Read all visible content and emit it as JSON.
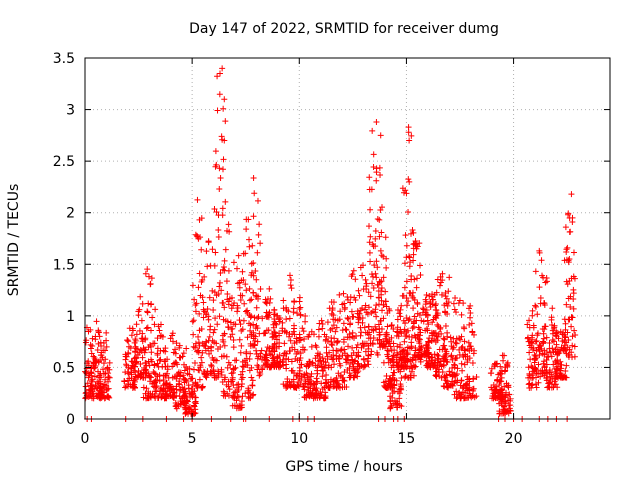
{
  "chart_data": {
    "type": "scatter",
    "title": "Day 147 of 2022, SRMTID for receiver dumg",
    "xlabel": "GPS time / hours",
    "ylabel": "SRMTID / TECUs",
    "xlim": [
      0,
      24.5
    ],
    "ylim": [
      0,
      3.5
    ],
    "x_ticks": [
      0,
      5,
      10,
      15,
      20
    ],
    "x_tick_labels": [
      "0",
      "5",
      "10",
      "15",
      "20"
    ],
    "y_ticks": [
      0,
      0.5,
      1,
      1.5,
      2,
      2.5,
      3,
      3.5
    ],
    "y_tick_labels": [
      "0",
      "0.5",
      "1",
      "1.5",
      "2",
      "2.5",
      "3",
      "3.5"
    ],
    "grid": true,
    "marker": "+",
    "marker_color": "#ff0000",
    "series": [
      {
        "name": "SRMTID",
        "density_profile": [
          [
            0.1,
            0.2,
            0.9
          ],
          [
            0.5,
            0.2,
            0.95
          ],
          [
            0.9,
            0.2,
            0.85
          ],
          [
            2.1,
            0.3,
            0.9
          ],
          [
            2.6,
            0.4,
            1.2
          ],
          [
            3.0,
            0.2,
            1.5
          ],
          [
            3.5,
            0.2,
            0.95
          ],
          [
            4.0,
            0.2,
            0.85
          ],
          [
            4.5,
            0.1,
            0.75
          ],
          [
            4.9,
            0.05,
            0.5
          ],
          [
            5.3,
            0.3,
            2.2
          ],
          [
            5.8,
            0.4,
            1.8
          ],
          [
            6.3,
            0.4,
            3.4
          ],
          [
            6.7,
            0.2,
            1.9
          ],
          [
            7.1,
            0.1,
            1.6
          ],
          [
            7.6,
            0.2,
            1.95
          ],
          [
            8.0,
            0.4,
            2.35
          ],
          [
            8.6,
            0.5,
            1.3
          ],
          [
            9.0,
            0.5,
            1.1
          ],
          [
            9.5,
            0.3,
            1.4
          ],
          [
            10.0,
            0.3,
            1.2
          ],
          [
            10.5,
            0.2,
            0.9
          ],
          [
            11.0,
            0.2,
            1.0
          ],
          [
            11.5,
            0.3,
            1.2
          ],
          [
            12.0,
            0.3,
            1.35
          ],
          [
            12.5,
            0.4,
            1.45
          ],
          [
            13.0,
            0.5,
            1.5
          ],
          [
            13.5,
            0.6,
            2.9
          ],
          [
            13.8,
            0.7,
            2.1
          ],
          [
            14.2,
            0.3,
            1.1
          ],
          [
            14.5,
            0.1,
            0.9
          ],
          [
            14.8,
            0.5,
            1.2
          ],
          [
            15.1,
            0.4,
            2.85
          ],
          [
            15.4,
            0.5,
            1.9
          ],
          [
            15.8,
            0.6,
            1.2
          ],
          [
            16.2,
            0.5,
            1.3
          ],
          [
            16.6,
            0.4,
            1.5
          ],
          [
            17.0,
            0.3,
            1.4
          ],
          [
            17.5,
            0.2,
            1.2
          ],
          [
            18.0,
            0.2,
            1.2
          ],
          [
            19.2,
            0.2,
            0.55
          ],
          [
            19.6,
            0.05,
            0.65
          ],
          [
            20.9,
            0.3,
            1.1
          ],
          [
            21.3,
            0.4,
            1.65
          ],
          [
            21.8,
            0.3,
            1.1
          ],
          [
            22.2,
            0.4,
            0.9
          ],
          [
            22.6,
            0.6,
            2.2
          ]
        ],
        "outliers": [
          [
            6.3,
            3.35
          ],
          [
            6.4,
            3.4
          ],
          [
            6.5,
            3.1
          ],
          [
            13.6,
            2.88
          ],
          [
            13.8,
            2.75
          ],
          [
            15.1,
            2.83
          ],
          [
            6.5,
            2.7
          ],
          [
            22.7,
            2.18
          ],
          [
            22.75,
            1.95
          ],
          [
            21.2,
            1.63
          ]
        ],
        "zero_points": [
          0.1,
          0.3,
          1.9,
          2.7,
          3.8,
          4.6,
          5.0,
          5.9,
          6.8,
          7.4,
          7.5,
          8.6,
          9.7,
          10.0,
          10.4,
          10.7,
          13.7,
          14.0,
          14.4,
          14.6,
          14.9,
          19.3,
          19.6,
          20.0,
          20.4,
          21.2,
          21.6,
          22.0,
          22.5
        ]
      }
    ]
  }
}
